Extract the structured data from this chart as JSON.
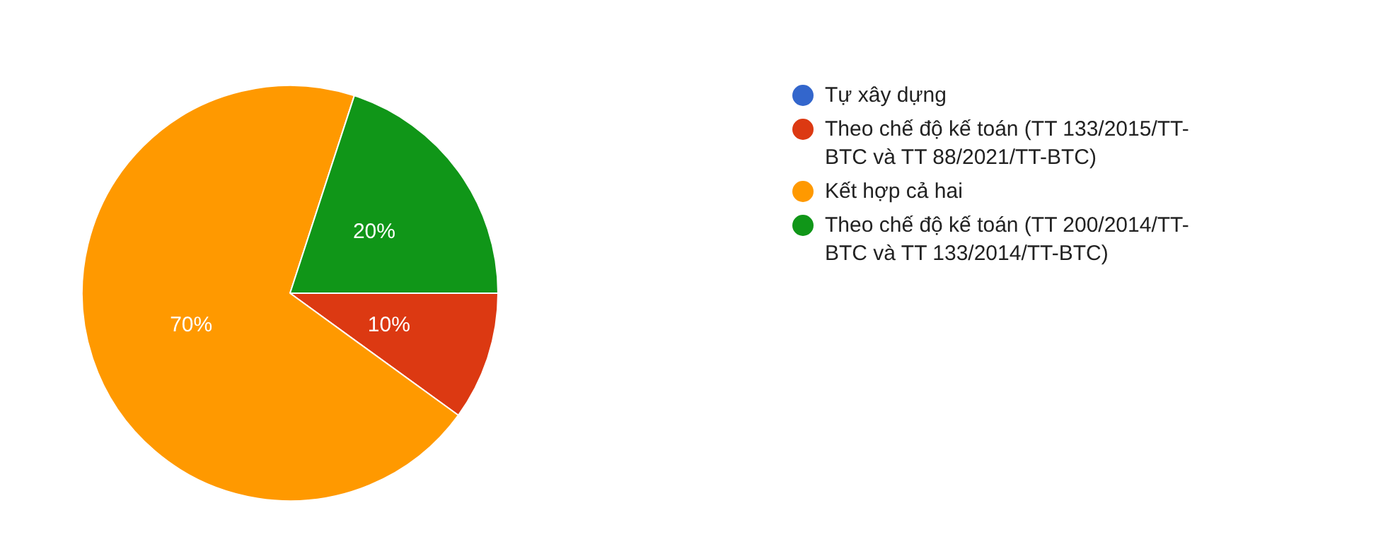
{
  "chart_data": {
    "type": "pie",
    "categories": [
      "Tự xây dựng",
      "Theo chế độ kế toán (TT 133/2015/TT-BTC và TT 88/2021/TT-BTC)",
      "Kết hợp cả hai",
      "Theo chế độ kế toán (TT 200/2014/TT-BTC và TT 133/2014/TT-BTC)"
    ],
    "values": [
      0,
      10,
      70,
      20
    ],
    "colors": [
      "#3366cc",
      "#dc3912",
      "#ff9900",
      "#109618"
    ],
    "value_labels": [
      null,
      "10%",
      "70%",
      "20%"
    ],
    "legend": "right"
  }
}
